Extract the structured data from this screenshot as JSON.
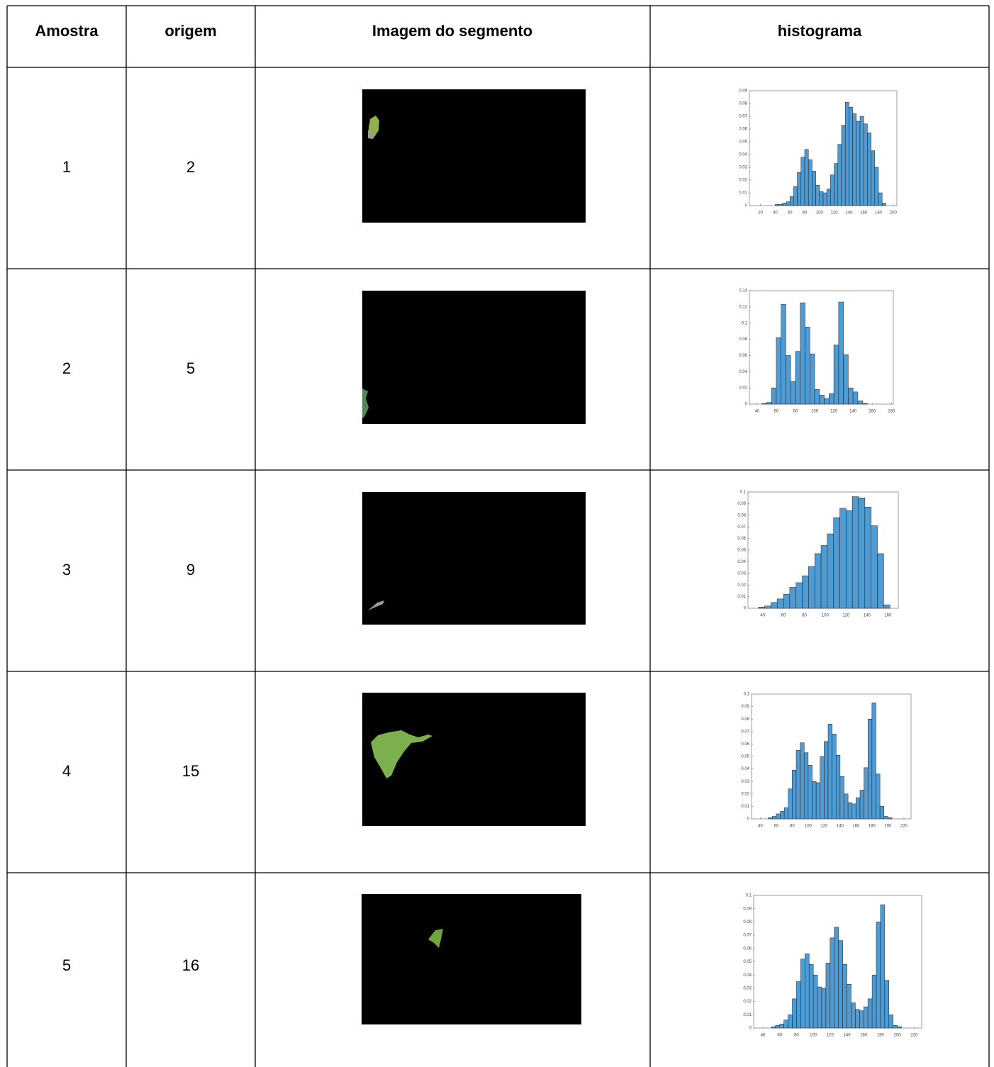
{
  "table": {
    "header": [
      "Amostra",
      "origem",
      "Imagem do segmento",
      "histograma"
    ],
    "rows": [
      {
        "amostra": 1,
        "origem": 2,
        "histogram": {
          "type": "histogram",
          "color": "#4f9bd4",
          "bins": [
            35,
            40,
            45,
            50,
            55,
            60,
            65,
            70,
            75,
            80,
            85,
            90,
            95,
            100,
            105,
            110,
            115,
            120,
            125,
            130,
            135,
            140,
            145,
            150,
            155,
            160,
            165,
            170,
            175,
            180,
            185,
            190
          ],
          "counts": [
            0,
            0.001,
            0.001,
            0.002,
            0.003,
            0.007,
            0.015,
            0.026,
            0.038,
            0.044,
            0.036,
            0.027,
            0.016,
            0.011,
            0.01,
            0.013,
            0.024,
            0.033,
            0.048,
            0.063,
            0.081,
            0.077,
            0.072,
            0.066,
            0.07,
            0.064,
            0.057,
            0.043,
            0.03,
            0.01,
            0.002
          ],
          "xlim": [
            5,
            205
          ],
          "ylim": [
            0,
            0.09
          ],
          "xticks": [
            20,
            40,
            60,
            80,
            100,
            120,
            140,
            160,
            180,
            200
          ],
          "yticks": [
            0,
            0.01,
            0.02,
            0.03,
            0.04,
            0.05,
            0.06,
            0.07,
            0.08,
            0.09
          ]
        }
      },
      {
        "amostra": 2,
        "origem": 5,
        "histogram": {
          "type": "histogram",
          "color": "#4f9bd4",
          "bins": [
            45,
            50,
            55,
            60,
            65,
            70,
            75,
            80,
            85,
            90,
            95,
            100,
            105,
            110,
            115,
            120,
            125,
            130,
            135,
            140,
            145,
            150,
            155
          ],
          "counts": [
            0.001,
            0.002,
            0.02,
            0.082,
            0.123,
            0.06,
            0.028,
            0.065,
            0.125,
            0.095,
            0.062,
            0.018,
            0.011,
            0.007,
            0.013,
            0.073,
            0.126,
            0.061,
            0.02,
            0.015,
            0.004,
            0.001
          ],
          "xlim": [
            32,
            182
          ],
          "ylim": [
            0,
            0.14
          ],
          "xticks": [
            40,
            60,
            80,
            100,
            120,
            140,
            160,
            180
          ],
          "yticks": [
            0,
            0.02,
            0.04,
            0.06,
            0.08,
            0.1,
            0.12,
            0.14
          ]
        }
      },
      {
        "amostra": 3,
        "origem": 9,
        "histogram": {
          "type": "histogram",
          "color": "#4f9bd4",
          "bins": [
            36,
            42,
            48,
            54,
            60,
            66,
            72,
            78,
            84,
            90,
            96,
            102,
            108,
            114,
            120,
            126,
            132,
            138,
            144,
            150,
            156,
            162
          ],
          "counts": [
            0.001,
            0.002,
            0.005,
            0.008,
            0.012,
            0.018,
            0.022,
            0.028,
            0.036,
            0.047,
            0.054,
            0.064,
            0.078,
            0.086,
            0.084,
            0.096,
            0.095,
            0.087,
            0.071,
            0.047,
            0.003
          ],
          "xlim": [
            26,
            170
          ],
          "ylim": [
            0,
            0.1
          ],
          "xticks": [
            40,
            60,
            80,
            100,
            120,
            140,
            160
          ],
          "yticks": [
            0,
            0.01,
            0.02,
            0.03,
            0.04,
            0.05,
            0.06,
            0.07,
            0.08,
            0.09,
            0.1
          ]
        }
      },
      {
        "amostra": 4,
        "origem": 15,
        "histogram": {
          "type": "histogram",
          "color": "#4f9bd4",
          "bins": [
            50,
            55,
            60,
            65,
            70,
            75,
            80,
            85,
            90,
            95,
            100,
            105,
            110,
            115,
            120,
            125,
            130,
            135,
            140,
            145,
            150,
            155,
            160,
            165,
            170,
            175,
            180,
            185,
            190,
            195,
            200,
            205
          ],
          "counts": [
            0.001,
            0.002,
            0.004,
            0.006,
            0.009,
            0.024,
            0.039,
            0.055,
            0.061,
            0.053,
            0.043,
            0.03,
            0.029,
            0.05,
            0.062,
            0.076,
            0.068,
            0.051,
            0.034,
            0.02,
            0.013,
            0.012,
            0.017,
            0.023,
            0.041,
            0.08,
            0.093,
            0.036,
            0.01,
            0.002,
            0.001
          ],
          "xlim": [
            29,
            229
          ],
          "ylim": [
            0,
            0.1
          ],
          "xticks": [
            40,
            60,
            80,
            100,
            120,
            140,
            160,
            180,
            200,
            220
          ],
          "yticks": [
            0,
            0.01,
            0.02,
            0.03,
            0.04,
            0.05,
            0.06,
            0.07,
            0.08,
            0.09,
            0.1
          ]
        }
      },
      {
        "amostra": 5,
        "origem": 16,
        "histogram": {
          "type": "histogram",
          "color": "#4f9bd4",
          "bins": [
            50,
            55,
            60,
            65,
            70,
            75,
            80,
            85,
            90,
            95,
            100,
            105,
            110,
            115,
            120,
            125,
            130,
            135,
            140,
            145,
            150,
            155,
            160,
            165,
            170,
            175,
            180,
            185,
            190,
            195,
            200,
            205
          ],
          "counts": [
            0.001,
            0.002,
            0.003,
            0.006,
            0.01,
            0.022,
            0.035,
            0.052,
            0.056,
            0.048,
            0.04,
            0.031,
            0.03,
            0.049,
            0.068,
            0.076,
            0.066,
            0.048,
            0.033,
            0.019,
            0.014,
            0.013,
            0.016,
            0.022,
            0.04,
            0.08,
            0.093,
            0.036,
            0.01,
            0.002,
            0.001
          ],
          "xlim": [
            29,
            229
          ],
          "ylim": [
            0,
            0.1
          ],
          "xticks": [
            40,
            60,
            80,
            100,
            120,
            140,
            160,
            180,
            200,
            220
          ],
          "yticks": [
            0,
            0.01,
            0.02,
            0.03,
            0.04,
            0.05,
            0.06,
            0.07,
            0.08,
            0.09,
            0.1
          ]
        }
      }
    ]
  }
}
